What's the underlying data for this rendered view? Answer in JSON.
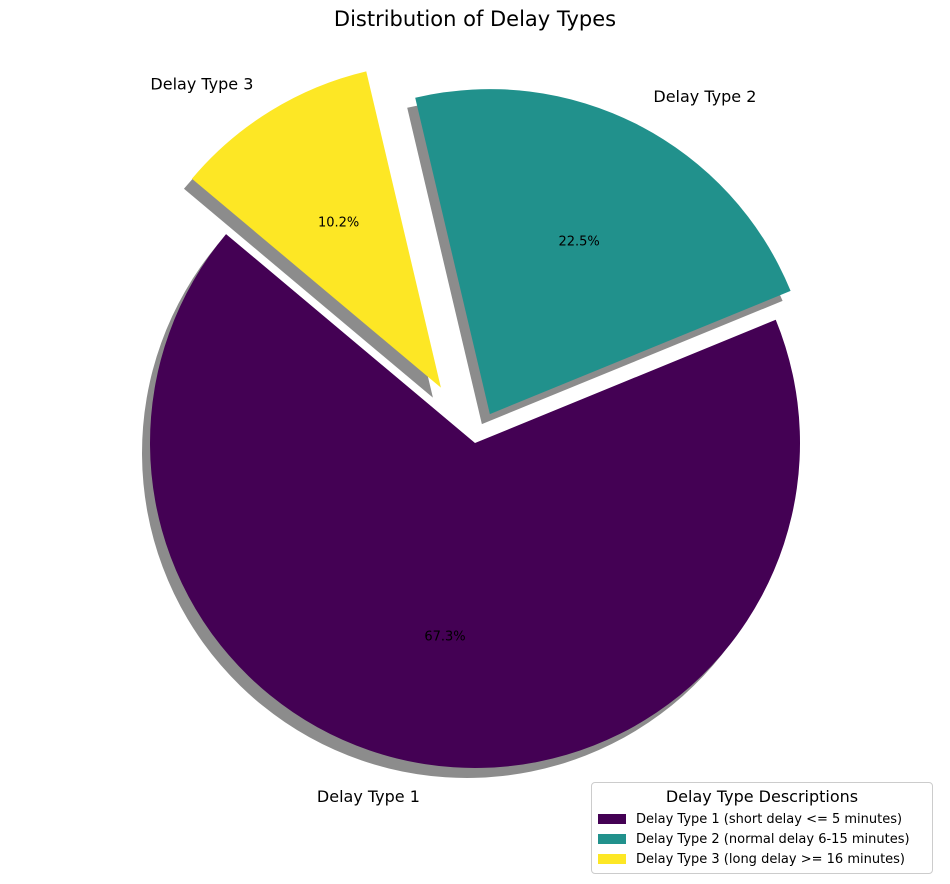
{
  "chart_data": {
    "type": "pie",
    "title": "Distribution of Delay Types",
    "labels": [
      "Delay Type 1",
      "Delay Type 2",
      "Delay Type 3"
    ],
    "values": [
      67.3,
      22.5,
      10.2
    ],
    "percent_labels": [
      "67.3%",
      "22.5%",
      "10.2%"
    ],
    "colors": [
      "#440154",
      "#21918c",
      "#fde725"
    ],
    "explode": [
      0,
      0.1,
      0.2
    ],
    "shadow": true,
    "legend": {
      "title": "Delay Type Descriptions",
      "placement": "lower-right",
      "entries": [
        "Delay Type 1 (short delay <= 5 minutes)",
        "Delay Type 2 (normal delay 6-15 minutes)",
        "Delay Type 3 (long delay >= 16 minutes)"
      ]
    }
  }
}
